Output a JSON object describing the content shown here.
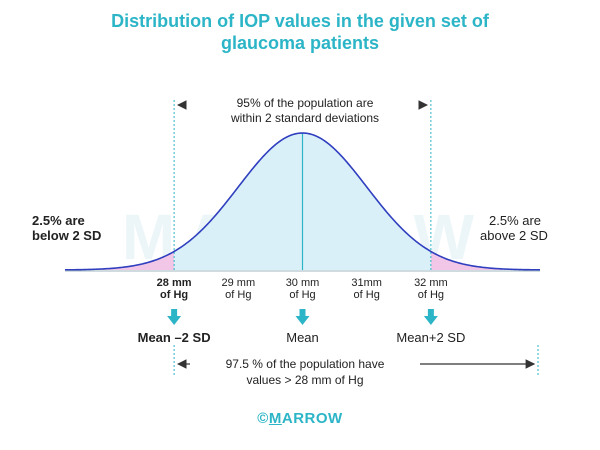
{
  "chart_data": {
    "type": "area",
    "title": "Distribution of IOP values in the given set of glaucoma patients",
    "title_lines": [
      "Distribution of IOP values in the given set of",
      "glaucoma patients"
    ],
    "x_ticks": [
      {
        "value": 28,
        "lines": [
          "28 mm",
          "of Hg"
        ],
        "bold": true
      },
      {
        "value": 29,
        "lines": [
          "29 mm",
          "of Hg"
        ],
        "bold": false
      },
      {
        "value": 30,
        "lines": [
          "30 mm",
          "of Hg"
        ],
        "bold": false
      },
      {
        "value": 31,
        "lines": [
          "31mm",
          "of Hg"
        ],
        "bold": false
      },
      {
        "value": 32,
        "lines": [
          "32 mm",
          "of Hg"
        ],
        "bold": false
      }
    ],
    "xlim": [
      26.3,
      33.7
    ],
    "mean": 30,
    "sd": 1,
    "shaded_region": [
      28,
      32
    ],
    "tail_colors": {
      "middle": "#d9f0f8",
      "tails": "#f2c6e6",
      "curve": "#2f3fbf",
      "accent": "#2cb5c7"
    },
    "top_annotation": [
      "95% of the population are",
      "within 2 standard deviations"
    ],
    "left_tail_label": [
      "2.5% are",
      "below 2 SD"
    ],
    "right_tail_label": [
      "2.5% are",
      "above 2 SD"
    ],
    "markers": [
      {
        "value": 28,
        "label": "Mean –2 SD"
      },
      {
        "value": 30,
        "label": "Mean"
      },
      {
        "value": 32,
        "label": "Mean+2 SD"
      }
    ],
    "bottom_annotation": [
      "97.5 % of the population have",
      "values > 28 mm of Hg"
    ]
  },
  "watermark": "MARROW",
  "footer": {
    "symbol": "©",
    "first_letter": "M",
    "rest": "ARROW"
  }
}
